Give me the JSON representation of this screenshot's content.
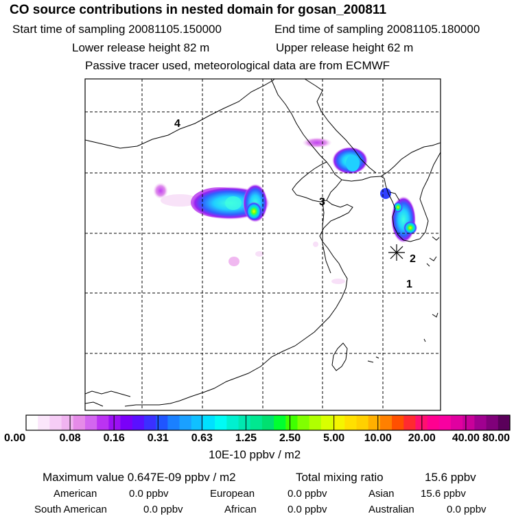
{
  "header": {
    "title": "CO  source contributions in nested domain for gosan_200811",
    "start_label": "Start time of sampling 20081105.150000",
    "end_label": "End time of sampling 20081105.180000",
    "lower_label": "Lower release height   82 m",
    "upper_label": "Upper release height   62 m",
    "tracer_note": "Passive tracer used, meteorological data are from ECMWF"
  },
  "map": {
    "region_labels": [
      "4",
      "3",
      "2",
      "1"
    ],
    "release_marker": "star-icon"
  },
  "colorbar": {
    "tick_labels": [
      "0.00",
      "0.08",
      "0.16",
      "0.31",
      "0.63",
      "1.25",
      "2.50",
      "5.00",
      "10.00",
      "20.00",
      "40.00",
      "80.00"
    ],
    "colors": [
      "#ffffff",
      "#fbe6fb",
      "#f6cdf6",
      "#f0b3f0",
      "#e58be8",
      "#d366ef",
      "#bb33f2",
      "#9b10f4",
      "#7a00f8",
      "#5a10ff",
      "#3b30ff",
      "#1f55ff",
      "#1a80ff",
      "#1aa0ff",
      "#10c0ff",
      "#00e0ff",
      "#00fbf5",
      "#00f0d0",
      "#00e8b0",
      "#00e890",
      "#00e070",
      "#00ff30",
      "#40ff00",
      "#80ff00",
      "#b0ff00",
      "#d8ff00",
      "#f5f500",
      "#ffe000",
      "#ffd000",
      "#ffb000",
      "#ff8000",
      "#ff5000",
      "#ff2a30",
      "#ff1070",
      "#ff0090",
      "#f800a0",
      "#e000a0",
      "#c8009a",
      "#a00090",
      "#80007a",
      "#5a005a"
    ],
    "units": "10E-10 ppbv / m2"
  },
  "stats": {
    "max_label": "Maximum value  0.647E-09 ppbv / m2",
    "total_label": "Total mixing ratio",
    "total_value": "15.6 ppbv",
    "sources": [
      {
        "name": "American",
        "value": "0.0 ppbv"
      },
      {
        "name": "European",
        "value": "0.0 ppbv"
      },
      {
        "name": "Asian",
        "value": "15.6 ppbv"
      },
      {
        "name": "South American",
        "value": "0.0 ppbv"
      },
      {
        "name": "African",
        "value": "0.0 ppbv"
      },
      {
        "name": "Australian",
        "value": "0.0 ppbv"
      }
    ]
  }
}
